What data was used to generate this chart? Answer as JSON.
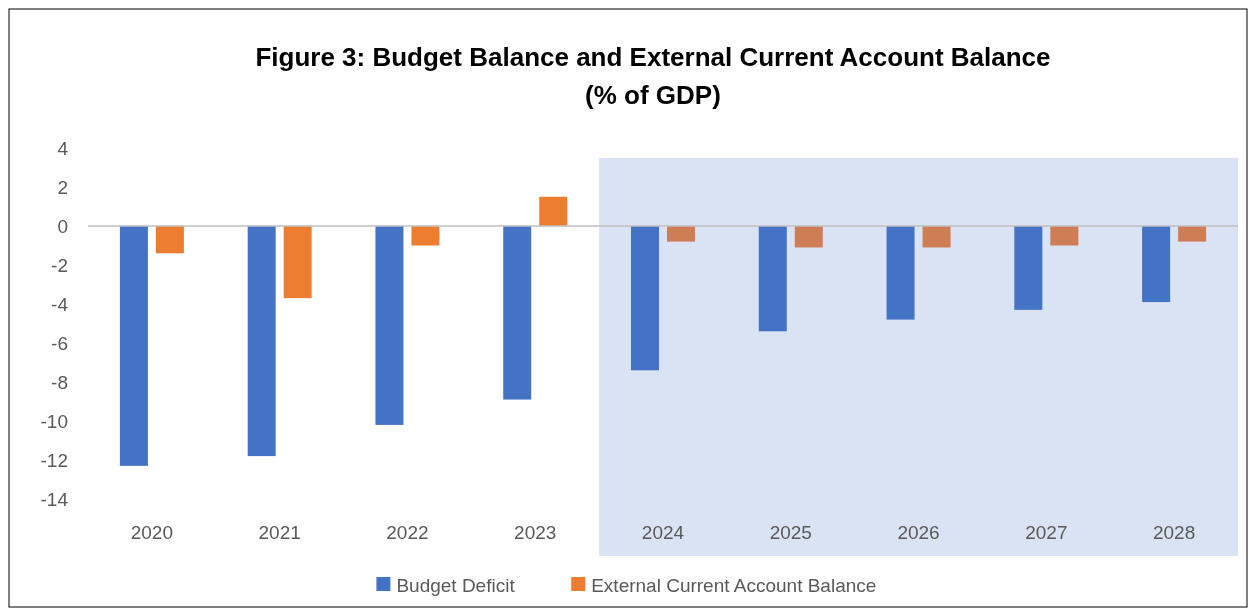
{
  "chart_data": {
    "type": "bar",
    "title": "Figure 3: Budget Balance and External Current Account Balance\n(% of GDP)",
    "categories": [
      "2020",
      "2021",
      "2022",
      "2023",
      "2024",
      "2025",
      "2026",
      "2027",
      "2028"
    ],
    "series": [
      {
        "name": "Budget Deficit",
        "color": "#4472c4",
        "values": [
          -12.3,
          -11.8,
          -10.2,
          -8.9,
          -7.4,
          -5.4,
          -4.8,
          -4.3,
          -3.9
        ]
      },
      {
        "name": "External Current Account Balance",
        "color": "#ed7d31",
        "colors": [
          "#ed7d31",
          "#ed7d31",
          "#ed7d31",
          "#ed7d31",
          "#cf7d54",
          "#cf7d54",
          "#cf7d54",
          "#cf7d54",
          "#cf7d54"
        ],
        "values": [
          -1.4,
          -3.7,
          -1.0,
          1.5,
          -0.8,
          -1.1,
          -1.1,
          -1.0,
          -0.8
        ]
      }
    ],
    "ylim": [
      -14,
      4
    ],
    "yticks": [
      -14,
      -12,
      -10,
      -8,
      -6,
      -4,
      -2,
      0,
      2,
      4
    ],
    "legend": "bottom",
    "bands": [
      {
        "axis": "x",
        "from": "2024",
        "to": "2028",
        "color": "#dae3f3"
      }
    ]
  }
}
